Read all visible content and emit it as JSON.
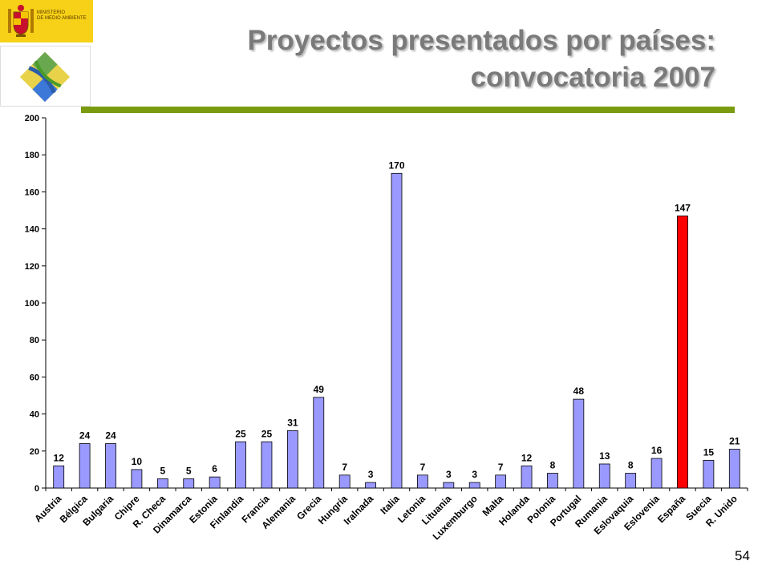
{
  "header": {
    "title_line1": "Proyectos presentados por países:",
    "title_line2": "convocatoria 2007",
    "ministry_line1": "MINISTERIO",
    "ministry_line2": "DE MEDIO AMBIENTE"
  },
  "colors": {
    "bar": "#9999ff",
    "bar_highlight": "#ff0000",
    "rule": "#7a9a0f",
    "logo_bg": "#f7d117"
  },
  "chart_data": {
    "type": "bar",
    "categories": [
      "Austria",
      "Bélgica",
      "Bulgaria",
      "Chipre",
      "R. Checa",
      "Dinamarca",
      "Estonia",
      "Finlandia",
      "Francia",
      "Alemania",
      "Grecia",
      "Hungría",
      "Iralnada",
      "Italia",
      "Letonia",
      "Lituania",
      "Luxemburgo",
      "Malta",
      "Holanda",
      "Polonia",
      "Portugal",
      "Rumania",
      "Eslovaquia",
      "Eslovenia",
      "España",
      "Suecia",
      "R. Unido"
    ],
    "values": [
      12,
      24,
      24,
      10,
      5,
      5,
      6,
      25,
      25,
      31,
      49,
      7,
      3,
      170,
      7,
      3,
      3,
      7,
      12,
      8,
      48,
      13,
      8,
      16,
      147,
      15,
      21
    ],
    "highlight": "España",
    "ylim": [
      0,
      200
    ],
    "yticks": [
      0,
      20,
      40,
      60,
      80,
      100,
      120,
      140,
      160,
      180,
      200
    ],
    "data_labels": true
  },
  "footer": {
    "page_number": "54"
  }
}
